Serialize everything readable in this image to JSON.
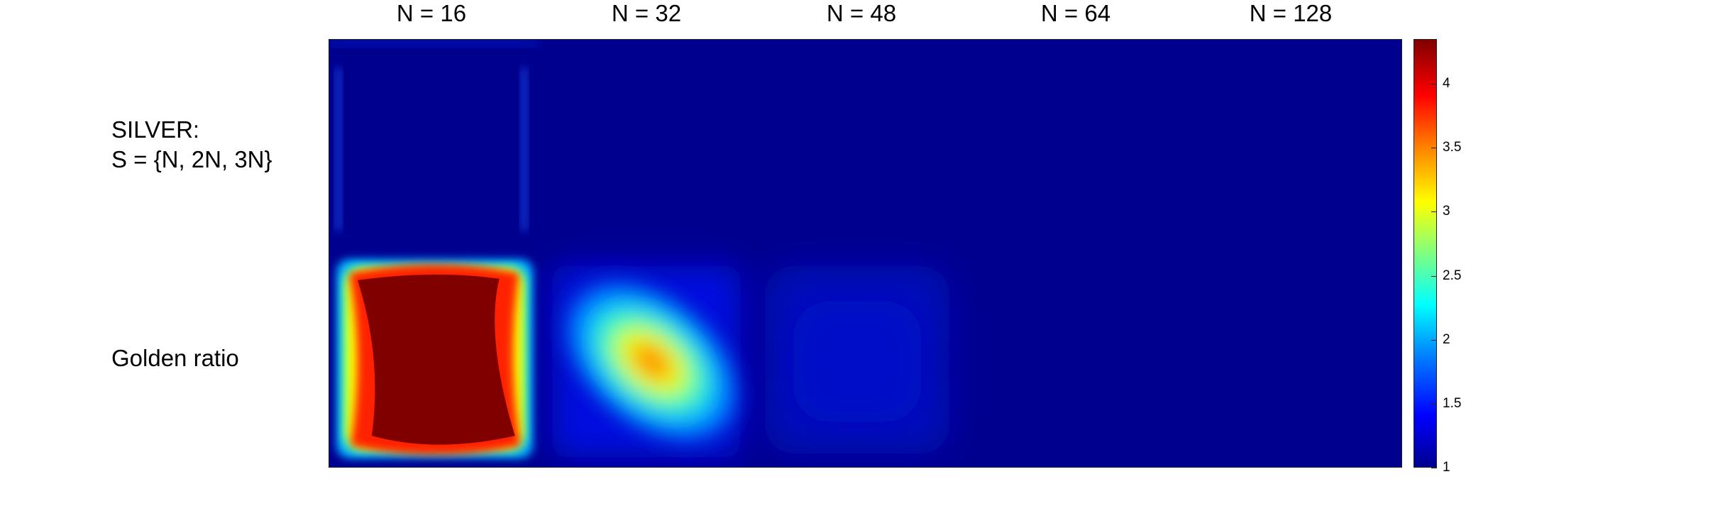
{
  "chart_data": {
    "type": "heatmap",
    "columns": [
      "N = 16",
      "N = 32",
      "N = 48",
      "N = 64",
      "N = 128"
    ],
    "rows": [
      {
        "lines": [
          "SILVER:",
          "S = {N, 2N, 3N}"
        ]
      },
      {
        "lines": [
          "Golden ratio"
        ]
      }
    ],
    "peak_values": [
      [
        1.6,
        1.0,
        1.0,
        1.0,
        1.0
      ],
      [
        4.3,
        3.6,
        1.15,
        1.0,
        1.0
      ]
    ],
    "colorbar": {
      "min": 1,
      "max": 4.35,
      "ticks": [
        "1",
        "1.5",
        "2",
        "2.5",
        "3",
        "3.5",
        "4"
      ],
      "colormap": "jet"
    }
  }
}
